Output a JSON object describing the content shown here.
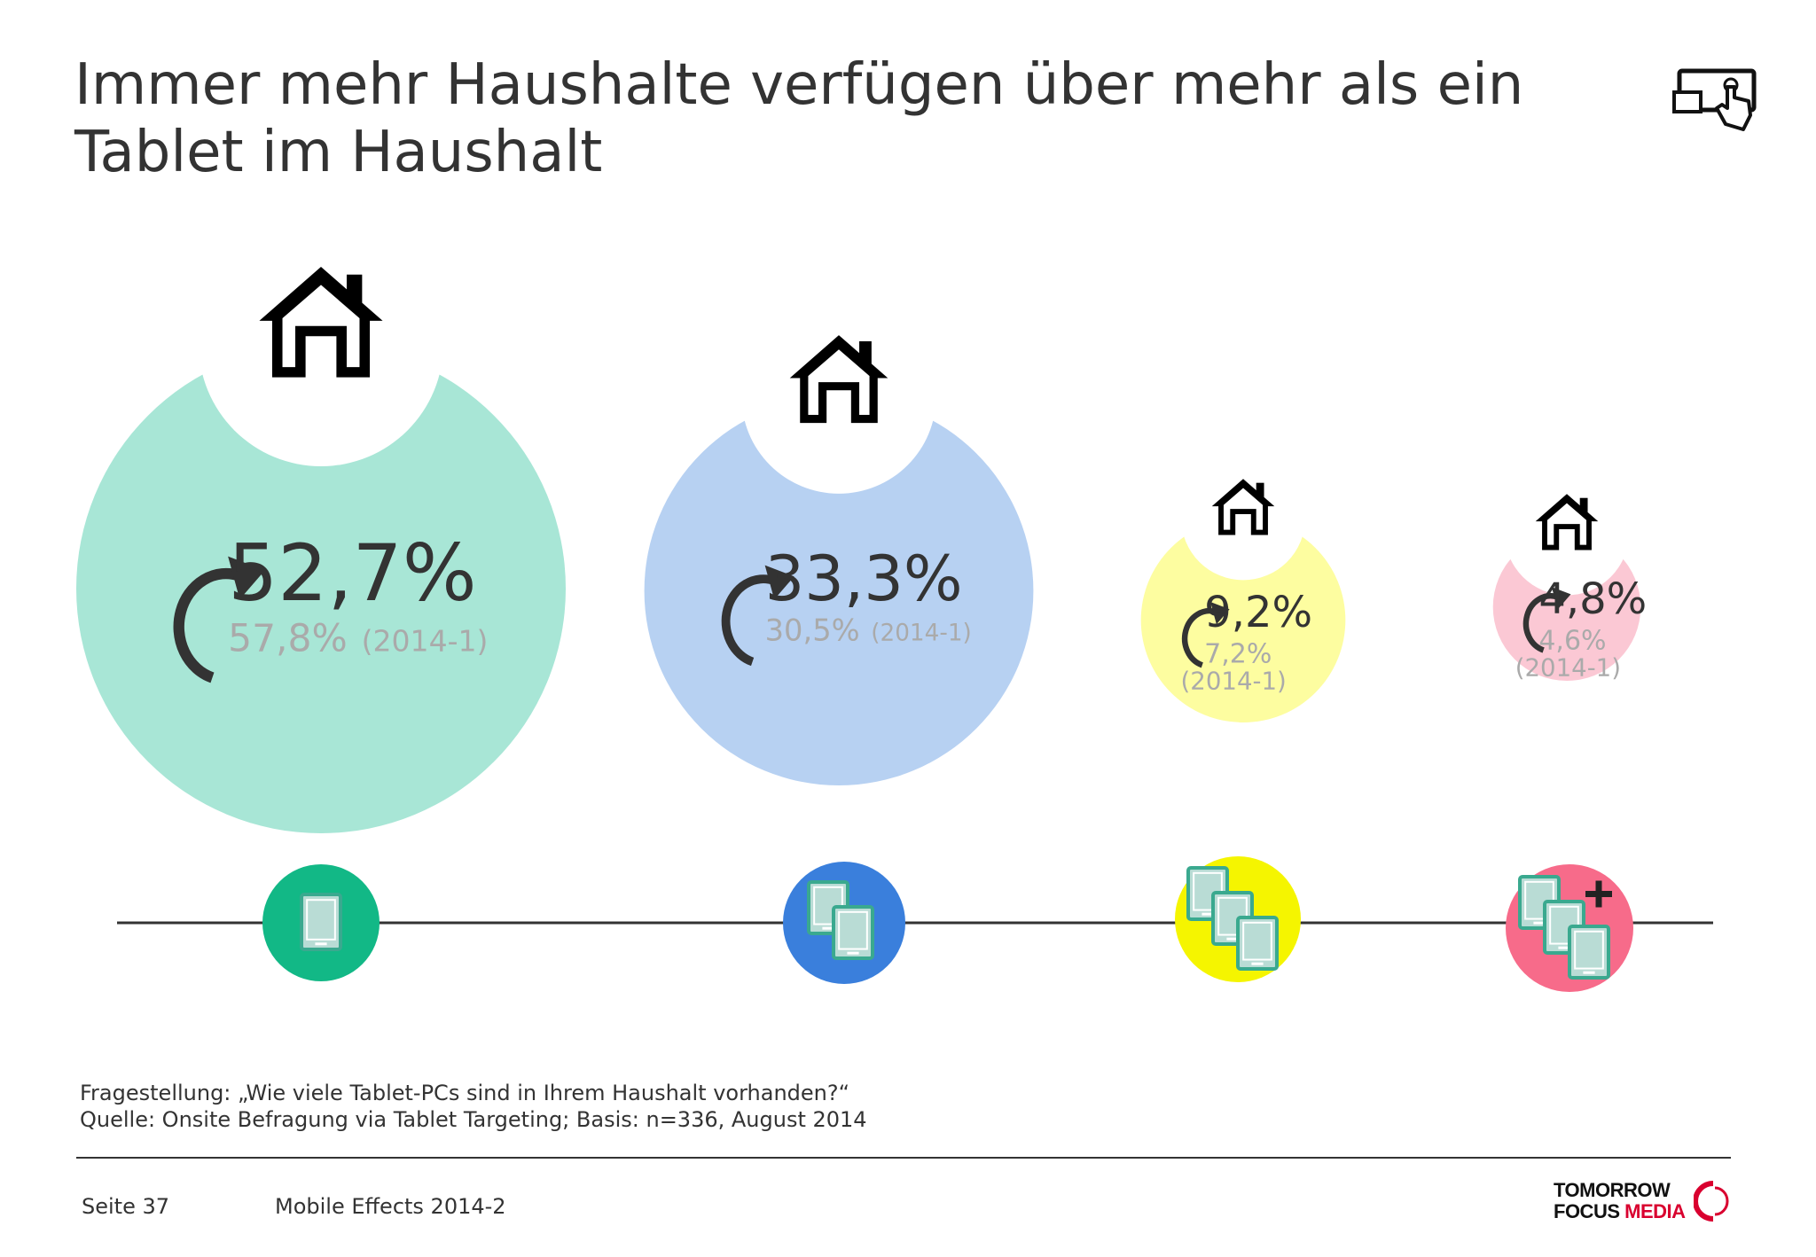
{
  "header": {
    "title_line1": "Immer mehr Haushalte verfügen über mehr als ein",
    "title_line2": "Tablet im Haushalt"
  },
  "chart_data": {
    "type": "bubble",
    "categories": [
      "1 Tablet",
      "2 Tablets",
      "3 Tablets",
      "mehr als 3 Tablets"
    ],
    "series": [
      {
        "name": "",
        "values": [
          52.7,
          33.3,
          9.2,
          4.8
        ]
      },
      {
        "name": "(2014-1)",
        "values": [
          57.8,
          30.5,
          7.2,
          4.6
        ]
      }
    ],
    "value_labels": [
      "52,7%",
      "33,3%",
      "9,2%",
      "4,8%"
    ],
    "previous_labels": [
      "57,8%",
      "30,5%",
      "7,2%",
      "4,6%"
    ],
    "previous_period": "(2014-1)",
    "bubble_colors": [
      "#a8e6d6",
      "#b7d1f2",
      "#fdfda0",
      "#fbc8d4"
    ],
    "badge_colors": [
      "#12b886",
      "#3a7fdc",
      "#f5f500",
      "#f76b8a"
    ],
    "tablet_counts": [
      1,
      2,
      3,
      4
    ],
    "icons": [
      "house-icon",
      "tablet-icon",
      "refresh-arrow-icon",
      "plus-icon"
    ]
  },
  "footnote": {
    "question": "Fragestellung: „Wie viele Tablet-PCs  sind in Ihrem Haushalt vorhanden?“",
    "source": "Quelle: Onsite Befragung via Tablet Targeting; Basis: n=336, August 2014"
  },
  "footer": {
    "page": "Seite 37",
    "report": "Mobile Effects 2014-2",
    "logo_line1": "TOMORROW",
    "logo_line2a": "FOCUS",
    "logo_line2b": "MEDIA"
  }
}
